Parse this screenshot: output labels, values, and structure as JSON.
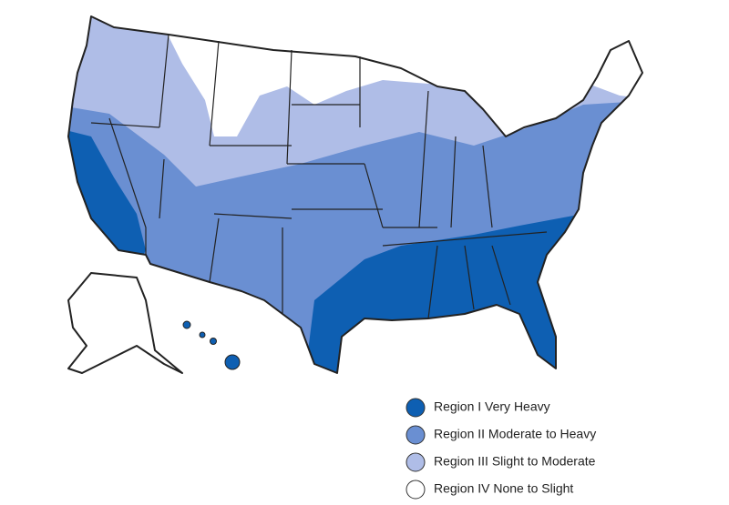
{
  "legend": {
    "items": [
      {
        "label": "Region I Very Heavy",
        "color": "#0e5fb2"
      },
      {
        "label": "Region II Moderate to Heavy",
        "color": "#6a8fd2"
      },
      {
        "label": "Region III Slight to Moderate",
        "color": "#afbde7"
      },
      {
        "label": "Region IV None to Slight",
        "color": "#ffffff"
      }
    ]
  }
}
